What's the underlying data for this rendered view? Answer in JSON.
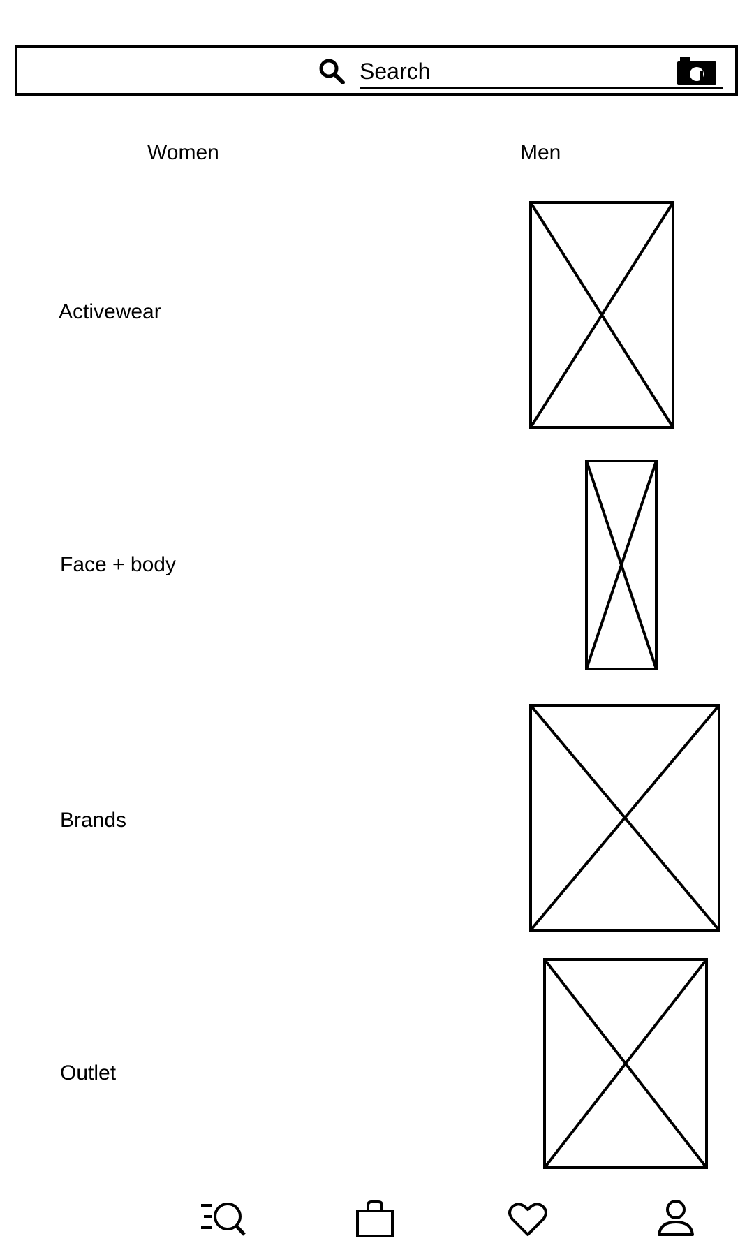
{
  "search": {
    "placeholder": "Search",
    "search_icon": "search-icon",
    "camera_icon": "camera-icon"
  },
  "tabs": [
    {
      "label": "Women"
    },
    {
      "label": "Men"
    }
  ],
  "categories": [
    {
      "label": "Activewear",
      "image": "image-placeholder"
    },
    {
      "label": "Face + body",
      "image": "image-placeholder"
    },
    {
      "label": "Brands",
      "image": "image-placeholder"
    },
    {
      "label": "Outlet",
      "image": "image-placeholder"
    }
  ],
  "bottom_nav": [
    {
      "icon": "menu-search-icon"
    },
    {
      "icon": "shopping-bag-icon"
    },
    {
      "icon": "heart-icon"
    },
    {
      "icon": "profile-icon"
    }
  ],
  "colors": {
    "foreground": "#000000",
    "background": "#ffffff"
  }
}
